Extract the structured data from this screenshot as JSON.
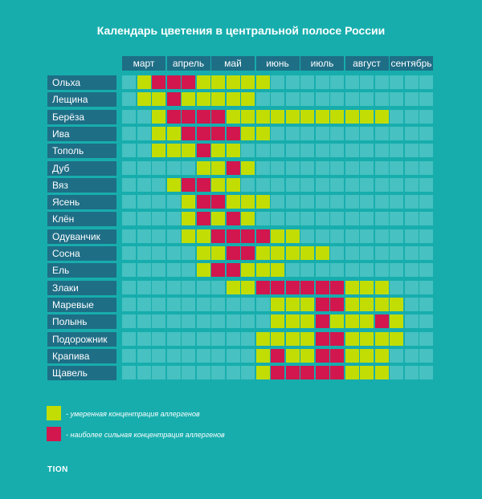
{
  "title": "Календарь цветения в центральной полосе России",
  "chart_data": {
    "type": "heatmap",
    "title": "Календарь цветения в центральной полосе России",
    "months": [
      "март",
      "апрель",
      "май",
      "июнь",
      "июль",
      "август",
      "сентябрь"
    ],
    "levels": {
      "0": "none",
      "1": "moderate",
      "2": "high"
    },
    "rows": [
      {
        "label": "Ольха",
        "values": [
          0,
          1,
          2,
          2,
          2,
          1,
          1,
          1,
          1,
          1,
          0,
          0,
          0,
          0,
          0,
          0,
          0,
          0,
          0,
          0,
          0
        ]
      },
      {
        "label": "Лещина",
        "values": [
          0,
          1,
          1,
          2,
          1,
          1,
          1,
          1,
          1,
          0,
          0,
          0,
          0,
          0,
          0,
          0,
          0,
          0,
          0,
          0,
          0
        ]
      },
      {
        "label": "Берёза",
        "values": [
          0,
          0,
          1,
          2,
          2,
          2,
          2,
          1,
          1,
          1,
          1,
          1,
          1,
          1,
          1,
          1,
          1,
          1,
          0,
          0,
          0
        ]
      },
      {
        "label": "Ива",
        "values": [
          0,
          0,
          1,
          1,
          2,
          2,
          2,
          2,
          1,
          1,
          0,
          0,
          0,
          0,
          0,
          0,
          0,
          0,
          0,
          0,
          0
        ]
      },
      {
        "label": "Тополь",
        "values": [
          0,
          0,
          1,
          1,
          1,
          2,
          1,
          1,
          0,
          0,
          0,
          0,
          0,
          0,
          0,
          0,
          0,
          0,
          0,
          0,
          0
        ]
      },
      {
        "label": "Дуб",
        "values": [
          0,
          0,
          0,
          0,
          0,
          1,
          1,
          2,
          1,
          0,
          0,
          0,
          0,
          0,
          0,
          0,
          0,
          0,
          0,
          0,
          0
        ]
      },
      {
        "label": "Вяз",
        "values": [
          0,
          0,
          0,
          1,
          2,
          2,
          1,
          1,
          0,
          0,
          0,
          0,
          0,
          0,
          0,
          0,
          0,
          0,
          0,
          0,
          0
        ]
      },
      {
        "label": "Ясень",
        "values": [
          0,
          0,
          0,
          0,
          1,
          2,
          2,
          1,
          1,
          1,
          0,
          0,
          0,
          0,
          0,
          0,
          0,
          0,
          0,
          0,
          0
        ]
      },
      {
        "label": "Клён",
        "values": [
          0,
          0,
          0,
          0,
          1,
          2,
          1,
          2,
          1,
          0,
          0,
          0,
          0,
          0,
          0,
          0,
          0,
          0,
          0,
          0,
          0
        ]
      },
      {
        "label": "Одуванчик",
        "values": [
          0,
          0,
          0,
          0,
          1,
          1,
          2,
          2,
          2,
          2,
          1,
          1,
          0,
          0,
          0,
          0,
          0,
          0,
          0,
          0,
          0
        ]
      },
      {
        "label": "Сосна",
        "values": [
          0,
          0,
          0,
          0,
          0,
          1,
          1,
          2,
          2,
          1,
          1,
          1,
          1,
          1,
          0,
          0,
          0,
          0,
          0,
          0,
          0
        ]
      },
      {
        "label": "Ель",
        "values": [
          0,
          0,
          0,
          0,
          0,
          1,
          2,
          2,
          1,
          1,
          1,
          0,
          0,
          0,
          0,
          0,
          0,
          0,
          0,
          0,
          0
        ]
      },
      {
        "label": "Злаки",
        "values": [
          0,
          0,
          0,
          0,
          0,
          0,
          0,
          1,
          1,
          2,
          2,
          2,
          2,
          2,
          2,
          1,
          1,
          1,
          0,
          0,
          0
        ]
      },
      {
        "label": "Маревые",
        "values": [
          0,
          0,
          0,
          0,
          0,
          0,
          0,
          0,
          0,
          0,
          1,
          1,
          1,
          2,
          2,
          1,
          1,
          1,
          1,
          0,
          0
        ]
      },
      {
        "label": "Полынь",
        "values": [
          0,
          0,
          0,
          0,
          0,
          0,
          0,
          0,
          0,
          0,
          1,
          1,
          1,
          2,
          1,
          1,
          1,
          2,
          1,
          0,
          0
        ]
      },
      {
        "label": "Подорожник",
        "values": [
          0,
          0,
          0,
          0,
          0,
          0,
          0,
          0,
          0,
          1,
          1,
          1,
          1,
          2,
          2,
          1,
          1,
          1,
          1,
          0,
          0
        ]
      },
      {
        "label": "Крапива",
        "values": [
          0,
          0,
          0,
          0,
          0,
          0,
          0,
          0,
          0,
          1,
          2,
          1,
          1,
          2,
          2,
          1,
          1,
          1,
          0,
          0,
          0
        ]
      },
      {
        "label": "Щавель",
        "values": [
          0,
          0,
          0,
          0,
          0,
          0,
          0,
          0,
          0,
          1,
          2,
          2,
          2,
          2,
          2,
          1,
          1,
          1,
          0,
          0,
          0
        ]
      }
    ],
    "colors": {
      "none": "#47c1c1",
      "moderate": "#c2dd04",
      "high": "#d2164e"
    }
  },
  "legend": [
    {
      "level": "moderate",
      "text": "- умеренная концентрация аллергенов"
    },
    {
      "level": "high",
      "text": "- наиболее сильная концентрация аллергенов"
    }
  ],
  "logo": "TION"
}
